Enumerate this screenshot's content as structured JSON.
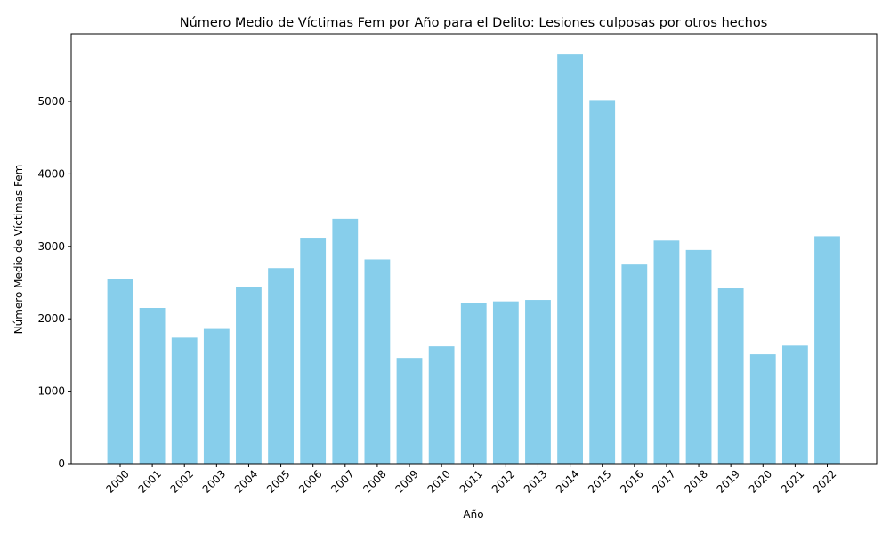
{
  "chart_data": {
    "type": "bar",
    "title": "Número Medio de Víctimas Fem por Año para el Delito: Lesiones culposas por otros hechos",
    "xlabel": "Año",
    "ylabel": "Número Medio de Víctimas Fem",
    "categories": [
      "2000",
      "2001",
      "2002",
      "2003",
      "2004",
      "2005",
      "2006",
      "2007",
      "2008",
      "2009",
      "2010",
      "2011",
      "2012",
      "2013",
      "2014",
      "2015",
      "2016",
      "2017",
      "2018",
      "2019",
      "2020",
      "2021",
      "2022"
    ],
    "values": [
      2550,
      2150,
      1740,
      1860,
      2440,
      2700,
      3120,
      3380,
      2820,
      1460,
      1620,
      2220,
      2240,
      2260,
      5650,
      5020,
      2750,
      3080,
      2950,
      2420,
      1510,
      1630,
      3140
    ],
    "yticks": [
      0,
      1000,
      2000,
      3000,
      4000,
      5000
    ],
    "ylim": [
      0,
      5934
    ],
    "bar_color": "#87ceeb",
    "grid": false,
    "legend": "none"
  }
}
